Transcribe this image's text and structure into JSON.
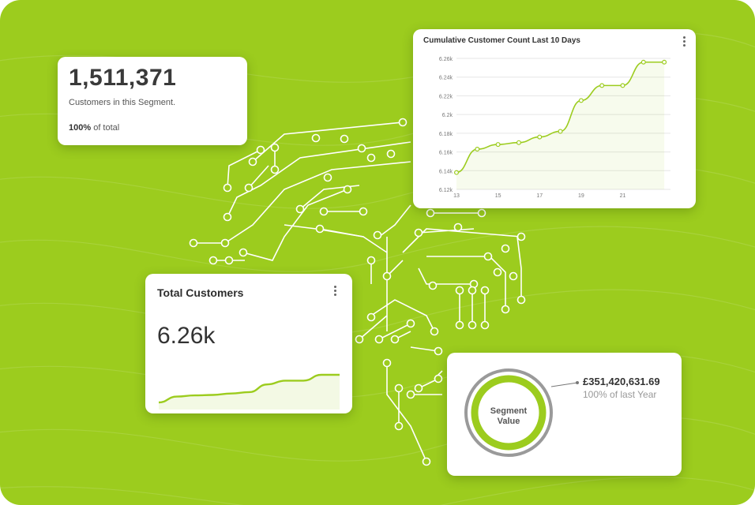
{
  "segment_card": {
    "count": "1,511,371",
    "description": "Customers in this Segment.",
    "percent": "100%",
    "percent_suffix": " of total"
  },
  "cumulative_chart": {
    "title": "Cumulative Customer Count Last 10 Days",
    "menu_icon": "kebab-icon",
    "chart_data": {
      "type": "area",
      "title": "Cumulative Customer Count Last 10 Days",
      "xlabel": "",
      "ylabel": "",
      "x_tick_labels": [
        "13",
        "15",
        "17",
        "19",
        "21"
      ],
      "y_tick_labels": [
        "6.12k",
        "6.14k",
        "6.16k",
        "6.18k",
        "6.2k",
        "6.22k",
        "6.24k",
        "6.26k"
      ],
      "xlim": [
        13,
        23.3
      ],
      "ylim": [
        6120,
        6260
      ],
      "grid": true,
      "series": [
        {
          "x": [
            13,
            14,
            15,
            16,
            17,
            18,
            19,
            20,
            21,
            22,
            23
          ],
          "y": [
            6138,
            6163,
            6168,
            6170,
            6176,
            6182,
            6215,
            6231,
            6231,
            6256,
            6256
          ]
        }
      ],
      "color": "#9ccc1e"
    }
  },
  "total_card": {
    "title": "Total Customers",
    "value": "6.26k",
    "menu_icon": "kebab-icon",
    "sparkline": [
      6138,
      6163,
      6168,
      6170,
      6176,
      6182,
      6215,
      6231,
      6231,
      6256,
      6256
    ]
  },
  "value_card": {
    "ring_label_line1": "Segment",
    "ring_label_line2": "Value",
    "amount": "£351,420,631.69",
    "percent_text": "100% of last Year",
    "ring_fraction": 1.0
  },
  "colors": {
    "background": "#9ccc1e",
    "accent": "#9ccc1e",
    "ring_outer": "#9a9a9a"
  }
}
